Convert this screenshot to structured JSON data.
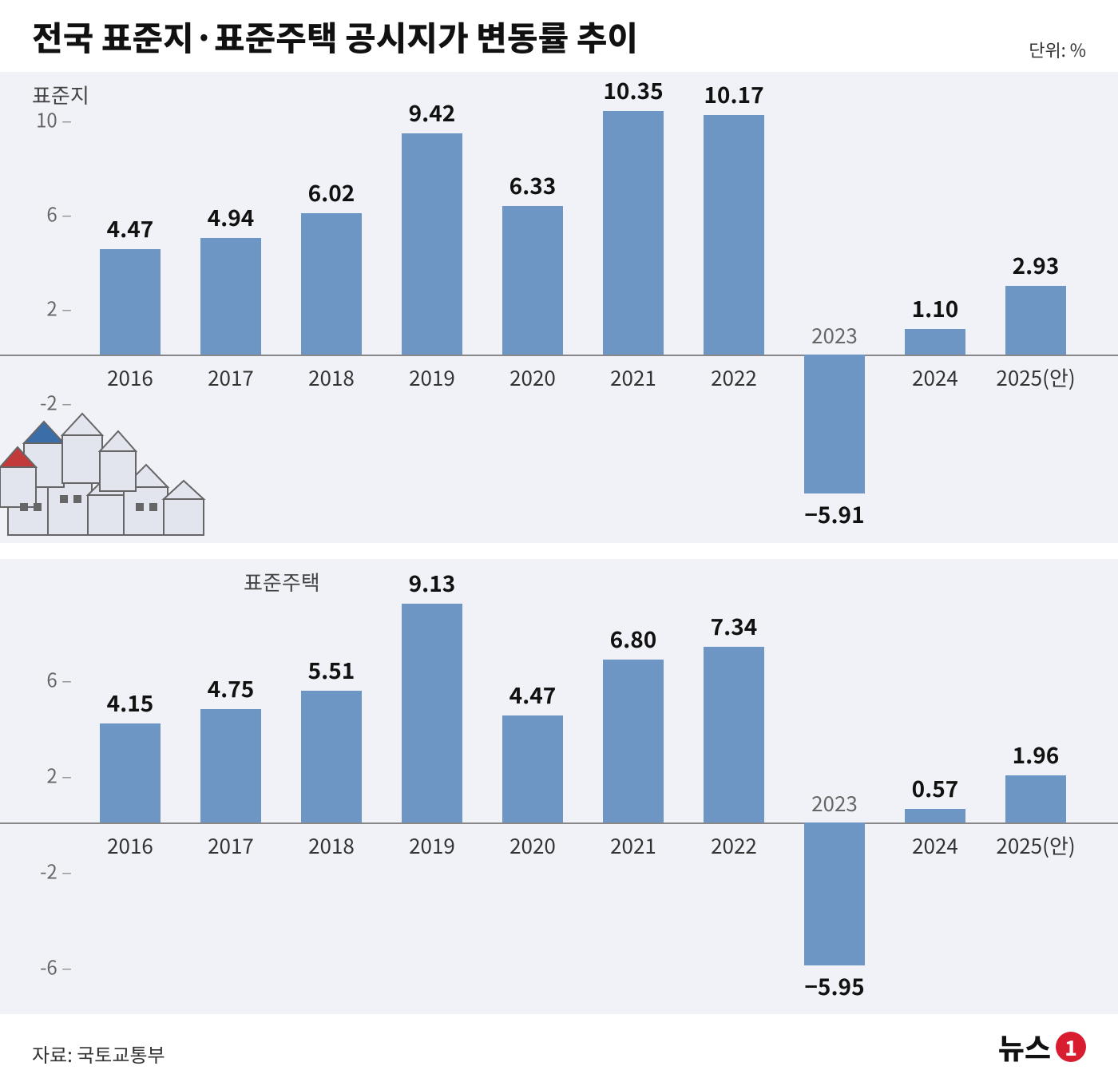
{
  "title": "전국 표준지·표준주택 공시지가 변동률 추이",
  "unit_label": "단위: %",
  "source_label": "자료: 국토교통부",
  "logo_text": "뉴스",
  "logo_badge": "1",
  "colors": {
    "bar": "#6e96c4",
    "panel_bg": "#f1f2f7",
    "baseline": "#888888",
    "text": "#111111",
    "muted": "#666666",
    "house_outline": "#666666",
    "house_fill": "#e2e5ee",
    "house_roof_blue": "#3b6ea8",
    "house_roof_red": "#c23a3a"
  },
  "charts": [
    {
      "label": "표준지",
      "y_ticks": [
        10,
        6,
        2,
        -2
      ],
      "y_max": 11,
      "y_min": -7,
      "categories": [
        "2016",
        "2017",
        "2018",
        "2019",
        "2020",
        "2021",
        "2022",
        "2023",
        "2024",
        "2025(안)"
      ],
      "values": [
        4.47,
        4.94,
        6.02,
        9.42,
        6.33,
        10.35,
        10.17,
        -5.91,
        1.1,
        2.93
      ],
      "negative_year_label_above": true
    },
    {
      "label": "표준주택",
      "y_ticks": [
        6,
        2,
        -2,
        -6
      ],
      "y_max": 10,
      "y_min": -7,
      "categories": [
        "2016",
        "2017",
        "2018",
        "2019",
        "2020",
        "2021",
        "2022",
        "2023",
        "2024",
        "2025(안)"
      ],
      "values": [
        4.15,
        4.75,
        5.51,
        9.13,
        4.47,
        6.8,
        7.34,
        -5.95,
        0.57,
        1.96
      ],
      "negative_year_label_above": true
    }
  ]
}
